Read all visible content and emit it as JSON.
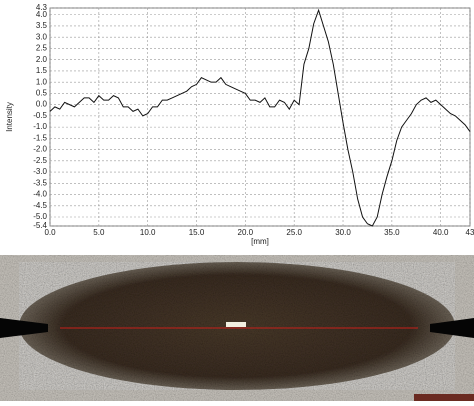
{
  "chart_data": {
    "type": "line",
    "xlabel": "[mm]",
    "ylabel": "Intensity",
    "x": [
      0,
      0.5,
      1,
      1.5,
      2,
      2.5,
      3,
      3.5,
      4,
      4.5,
      5,
      5.5,
      6,
      6.5,
      7,
      7.5,
      8,
      8.5,
      9,
      9.5,
      10,
      10.5,
      11,
      11.5,
      12,
      12.5,
      13,
      13.5,
      14,
      14.5,
      15,
      15.5,
      16,
      16.5,
      17,
      17.5,
      18,
      18.5,
      19,
      19.5,
      20,
      20.5,
      21,
      21.5,
      22,
      22.5,
      23,
      23.5,
      24,
      24.5,
      25,
      25.5,
      26,
      26.5,
      27,
      27.5,
      28,
      28.5,
      29,
      29.5,
      30,
      30.5,
      31,
      31.5,
      32,
      32.5,
      33,
      33.5,
      34,
      34.5,
      35,
      35.5,
      36,
      36.5,
      37,
      37.5,
      38,
      38.5,
      39,
      39.5,
      40,
      40.5,
      41,
      41.5,
      42,
      42.5,
      43
    ],
    "series": [
      {
        "color": "#111111",
        "values": [
          -0.3,
          -0.1,
          -0.2,
          0.1,
          0.0,
          -0.1,
          0.1,
          0.3,
          0.3,
          0.1,
          0.4,
          0.2,
          0.2,
          0.4,
          0.3,
          -0.1,
          -0.1,
          -0.3,
          -0.2,
          -0.5,
          -0.4,
          -0.1,
          -0.1,
          0.2,
          0.2,
          0.3,
          0.4,
          0.5,
          0.6,
          0.8,
          0.9,
          1.2,
          1.1,
          1.0,
          1.0,
          1.2,
          0.9,
          0.8,
          0.7,
          0.6,
          0.5,
          0.2,
          0.2,
          0.1,
          0.3,
          -0.1,
          -0.1,
          0.2,
          0.1,
          -0.2,
          0.2,
          0.0,
          1.8,
          2.5,
          3.6,
          4.2,
          3.5,
          2.8,
          1.8,
          0.5,
          -0.8,
          -2.0,
          -3.0,
          -4.2,
          -5.0,
          -5.3,
          -5.4,
          -5.0,
          -4.0,
          -3.2,
          -2.5,
          -1.6,
          -1.0,
          -0.7,
          -0.4,
          0.0,
          0.2,
          0.3,
          0.1,
          0.2,
          0.0,
          -0.2,
          -0.4,
          -0.5,
          -0.7,
          -0.9,
          -1.2
        ]
      }
    ],
    "xlim": [
      0,
      43
    ],
    "ylim": [
      -5.4,
      4.3
    ],
    "xticks": [
      {
        "value": 0,
        "label": "0.0"
      },
      {
        "value": 5,
        "label": "5.0"
      },
      {
        "value": 10,
        "label": "10.0"
      },
      {
        "value": 15,
        "label": "15.0"
      },
      {
        "value": 20,
        "label": "20.0"
      },
      {
        "value": 25,
        "label": "25.0"
      },
      {
        "value": 30,
        "label": "30.0"
      },
      {
        "value": 35,
        "label": "35.0"
      },
      {
        "value": 40,
        "label": "40.0"
      },
      43
    ],
    "yticks": [
      4.3,
      {
        "value": 4,
        "label": "4.0"
      },
      3.5,
      {
        "value": 3,
        "label": "3.0"
      },
      2.5,
      {
        "value": 2,
        "label": "2.0"
      },
      1.5,
      {
        "value": 1,
        "label": "1.0"
      },
      0.5,
      {
        "value": 0,
        "label": "0.0"
      },
      -0.5,
      {
        "value": -1,
        "label": "-1.0"
      },
      -1.5,
      {
        "value": -2,
        "label": "-2.0"
      },
      -2.5,
      {
        "value": -3,
        "label": "-3.0"
      },
      -3.5,
      {
        "value": -4,
        "label": "-4.0"
      },
      -4.5,
      {
        "value": -5,
        "label": "-5.0"
      },
      -5.4
    ],
    "grid": true
  }
}
